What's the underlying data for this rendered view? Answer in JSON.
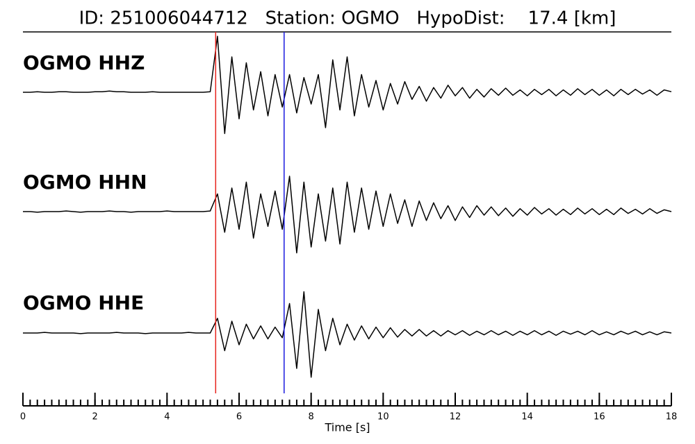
{
  "chart_data": {
    "type": "seismogram",
    "title": "ID: 251006044712   Station: OGMO   HypoDist:    17.4 [km]",
    "xlabel": "Time [s]",
    "xlim": [
      0,
      18
    ],
    "xticks": [
      0,
      2,
      4,
      6,
      8,
      10,
      12,
      14,
      16,
      18
    ],
    "x": [
      0,
      0.2,
      0.4,
      0.6,
      0.8,
      1,
      1.2,
      1.4,
      1.6,
      1.8,
      2,
      2.2,
      2.4,
      2.6,
      2.8,
      3,
      3.2,
      3.4,
      3.6,
      3.8,
      4,
      4.2,
      4.4,
      4.6,
      4.8,
      5,
      5.2,
      5.4,
      5.6,
      5.8,
      6,
      6.2,
      6.4,
      6.6,
      6.8,
      7,
      7.2,
      7.4,
      7.6,
      7.8,
      8,
      8.2,
      8.4,
      8.6,
      8.8,
      9,
      9.2,
      9.4,
      9.6,
      9.8,
      10,
      10.2,
      10.4,
      10.6,
      10.8,
      11,
      11.2,
      11.4,
      11.6,
      11.8,
      12,
      12.2,
      12.4,
      12.6,
      12.8,
      13,
      13.2,
      13.4,
      13.6,
      13.8,
      14,
      14.2,
      14.4,
      14.6,
      14.8,
      15,
      15.2,
      15.4,
      15.6,
      15.8,
      16,
      16.2,
      16.4,
      16.6,
      16.8,
      17,
      17.2,
      17.4,
      17.6,
      17.8,
      18
    ],
    "markers": [
      {
        "value": 5.35,
        "color": "#e8221c"
      },
      {
        "value": 7.25,
        "color": "#1a1adf"
      }
    ],
    "label_color": "#4c9a00",
    "series": [
      {
        "name": "OGMO HHZ",
        "color": "#000000",
        "values": [
          0,
          0,
          0.01,
          0,
          0,
          0.01,
          0.01,
          0,
          0,
          0,
          0.01,
          0.01,
          0.02,
          0.01,
          0.01,
          0,
          0,
          0,
          0.01,
          0,
          0,
          0,
          0,
          0,
          0,
          0,
          0.01,
          0.95,
          -0.7,
          0.6,
          -0.45,
          0.5,
          -0.3,
          0.35,
          -0.4,
          0.3,
          -0.25,
          0.3,
          -0.35,
          0.25,
          -0.2,
          0.3,
          -0.6,
          0.55,
          -0.3,
          0.6,
          -0.4,
          0.3,
          -0.25,
          0.2,
          -0.3,
          0.15,
          -0.2,
          0.18,
          -0.12,
          0.1,
          -0.15,
          0.08,
          -0.1,
          0.12,
          -0.06,
          0.08,
          -0.1,
          0.05,
          -0.08,
          0.06,
          -0.05,
          0.07,
          -0.05,
          0.04,
          -0.06,
          0.05,
          -0.04,
          0.05,
          -0.06,
          0.04,
          -0.05,
          0.06,
          -0.04,
          0.05,
          -0.05,
          0.04,
          -0.06,
          0.05,
          -0.04,
          0.05,
          -0.03,
          0.04,
          -0.05,
          0.04,
          0.01
        ]
      },
      {
        "name": "OGMO HHN",
        "color": "#000000",
        "values": [
          0,
          0,
          -0.01,
          0,
          0,
          0,
          0.01,
          0,
          -0.01,
          0,
          0,
          0,
          0.01,
          0,
          0,
          -0.01,
          0,
          0,
          0,
          0,
          0.01,
          0,
          0,
          0,
          0,
          0,
          0.01,
          0.3,
          -0.35,
          0.4,
          -0.3,
          0.5,
          -0.45,
          0.3,
          -0.25,
          0.35,
          -0.3,
          0.6,
          -0.7,
          0.5,
          -0.6,
          0.3,
          -0.5,
          0.4,
          -0.55,
          0.5,
          -0.35,
          0.4,
          -0.3,
          0.35,
          -0.25,
          0.3,
          -0.2,
          0.2,
          -0.25,
          0.18,
          -0.15,
          0.15,
          -0.12,
          0.1,
          -0.15,
          0.08,
          -0.1,
          0.1,
          -0.06,
          0.08,
          -0.07,
          0.06,
          -0.08,
          0.05,
          -0.06,
          0.07,
          -0.04,
          0.05,
          -0.06,
          0.04,
          -0.05,
          0.06,
          -0.04,
          0.05,
          -0.05,
          0.04,
          -0.05,
          0.06,
          -0.03,
          0.04,
          -0.04,
          0.05,
          -0.03,
          0.03,
          0
        ]
      },
      {
        "name": "OGMO HHE",
        "color": "#000000",
        "values": [
          0,
          0,
          0,
          0.01,
          0,
          0,
          0,
          0,
          -0.01,
          0,
          0,
          0,
          0,
          0.01,
          0,
          0,
          0,
          -0.01,
          0,
          0,
          0,
          0,
          0,
          0.01,
          0,
          0,
          0,
          0.25,
          -0.3,
          0.2,
          -0.2,
          0.15,
          -0.1,
          0.12,
          -0.1,
          0.1,
          -0.08,
          0.5,
          -0.6,
          0.7,
          -0.75,
          0.4,
          -0.3,
          0.25,
          -0.2,
          0.15,
          -0.12,
          0.12,
          -0.1,
          0.1,
          -0.08,
          0.09,
          -0.07,
          0.06,
          -0.05,
          0.06,
          -0.05,
          0.04,
          -0.05,
          0.04,
          -0.03,
          0.04,
          -0.04,
          0.03,
          -0.03,
          0.04,
          -0.03,
          0.03,
          -0.04,
          0.03,
          -0.03,
          0.04,
          -0.03,
          0.03,
          -0.04,
          0.03,
          -0.02,
          0.03,
          -0.03,
          0.04,
          -0.03,
          0.02,
          -0.03,
          0.03,
          -0.02,
          0.03,
          -0.03,
          0.02,
          -0.03,
          0.02,
          0
        ]
      }
    ]
  }
}
